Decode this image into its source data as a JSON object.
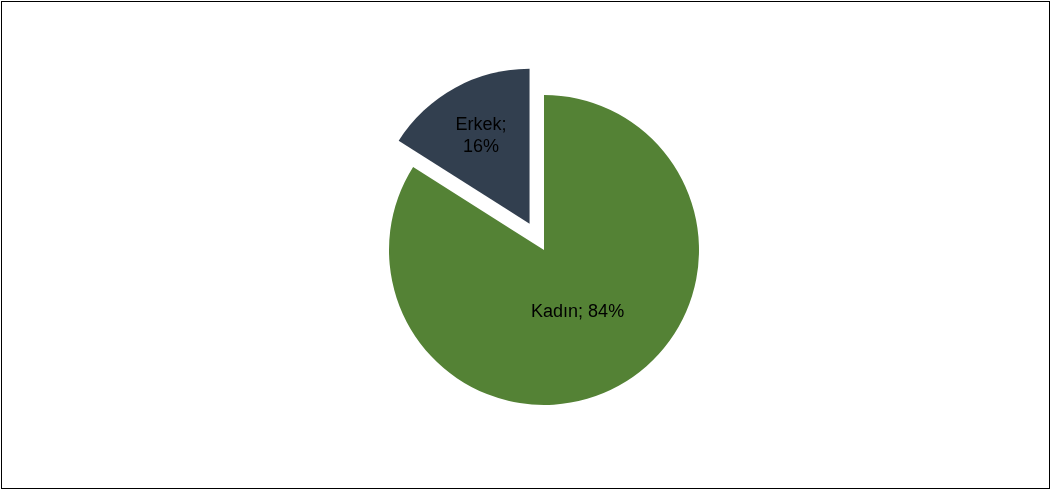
{
  "chart_data": {
    "type": "pie",
    "categories": [
      "Kadın",
      "Erkek"
    ],
    "values": [
      84,
      16
    ],
    "colors": [
      "#548235",
      "#323f4f"
    ],
    "value_labels": [
      "; 84%",
      "; 16%"
    ],
    "legend": false
  }
}
